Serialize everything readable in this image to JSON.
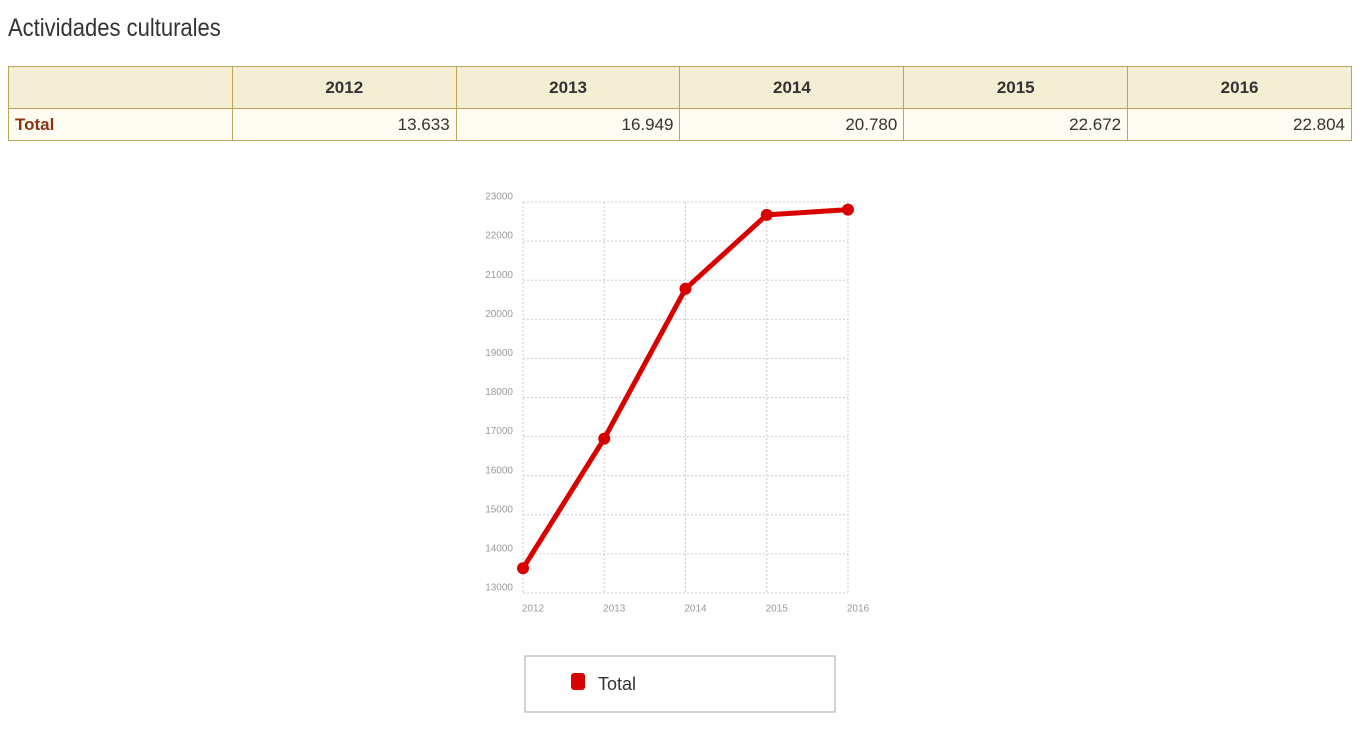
{
  "title": "Actividades culturales",
  "table": {
    "header": [
      "2012",
      "2013",
      "2014",
      "2015",
      "2016"
    ],
    "rows": [
      [
        "Total",
        "13.633",
        "16.949",
        "20.780",
        "22.672",
        "22.804"
      ]
    ]
  },
  "chart_data": {
    "type": "line",
    "categories": [
      "2012",
      "2013",
      "2014",
      "2015",
      "2016"
    ],
    "series": [
      {
        "name": "Total",
        "color": "#d90000",
        "values": [
          13633,
          16949,
          20780,
          22672,
          22804
        ]
      }
    ],
    "ylim": [
      13000,
      23000
    ],
    "yticks": [
      13000,
      14000,
      15000,
      16000,
      17000,
      18000,
      19000,
      20000,
      21000,
      22000,
      23000
    ],
    "grid": true,
    "legend": "bottom"
  }
}
